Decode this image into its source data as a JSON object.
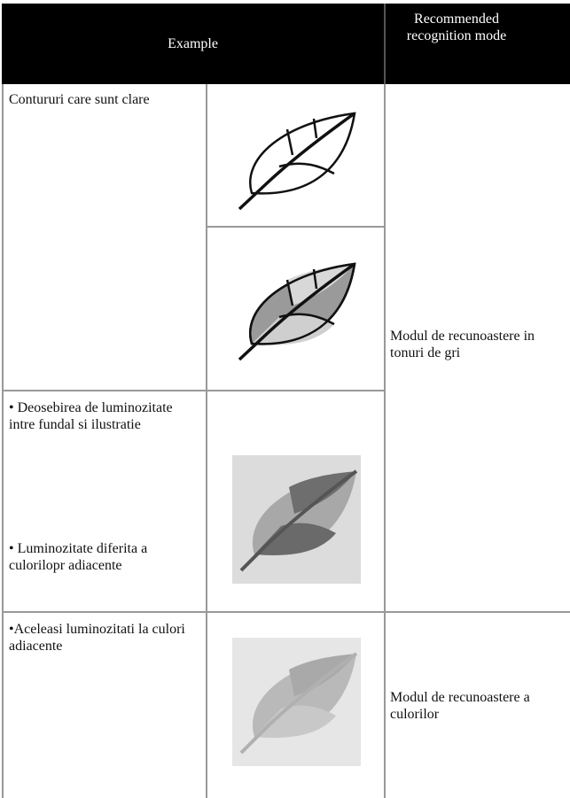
{
  "table": {
    "header": [
      "Example",
      "Recommended recognition mode"
    ],
    "rows": [
      {
        "description": [
          "Contururi care sunt clare"
        ]
      },
      {
        "description": [
          "• Deosebirea de luminozitate intre fundal si ilustratie",
          "• Luminozitate diferita a culorilopr adiacente"
        ]
      },
      {
        "description": [
          "•Aceleasi luminozitati la culori adiacente"
        ]
      }
    ],
    "modes": [
      "Modul de recunoastere in tonuri de gri",
      "Modul de recunoastere a culorilor"
    ]
  }
}
